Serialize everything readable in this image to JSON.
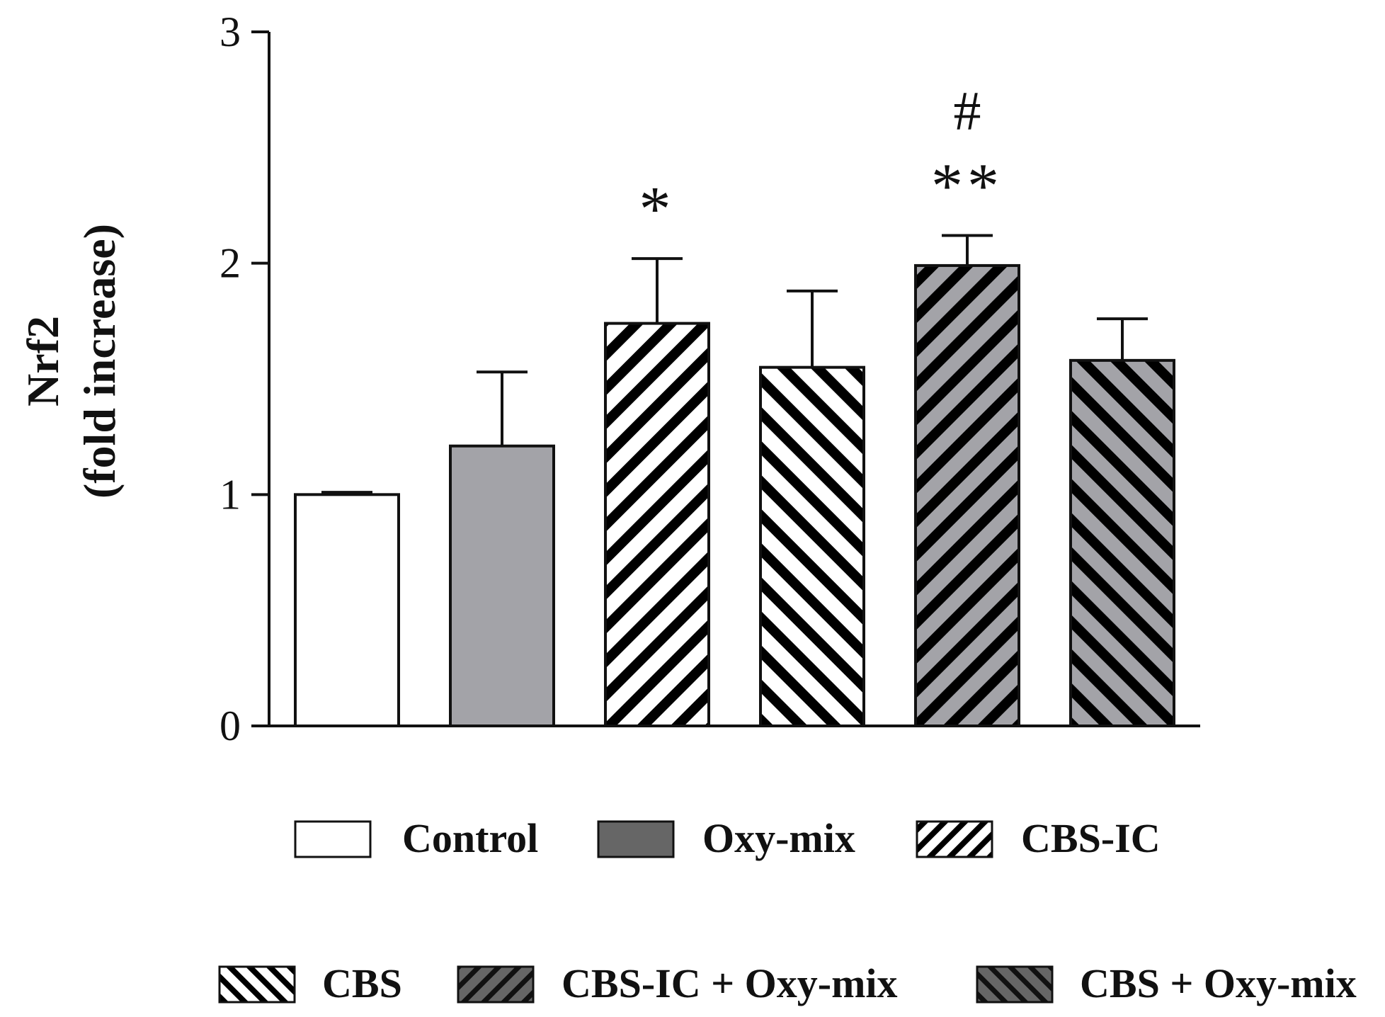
{
  "chart_data": {
    "type": "bar",
    "title": "",
    "xlabel": "",
    "ylabel": [
      "Nrf2",
      "(fold increase)"
    ],
    "ylim": [
      0,
      3
    ],
    "yticks": [
      0,
      1,
      2,
      3
    ],
    "grid": false,
    "categories": [
      "Control",
      "Oxy-mix",
      "CBS-IC",
      "CBS",
      "CBS-IC + Oxy-mix",
      "CBS + Oxy-mix"
    ],
    "values": [
      1.0,
      1.21,
      1.74,
      1.55,
      1.99,
      1.58
    ],
    "errors": [
      0.01,
      0.32,
      0.28,
      0.33,
      0.13,
      0.18
    ],
    "annotations": [
      {
        "category": "CBS-IC",
        "lines": [
          "*"
        ]
      },
      {
        "category": "CBS-IC + Oxy-mix",
        "lines": [
          "#",
          "**"
        ]
      }
    ],
    "legend": {
      "placement": "bottom",
      "entries": [
        "Control",
        "Oxy-mix",
        "CBS-IC",
        "CBS",
        "CBS-IC + Oxy-mix",
        "CBS + Oxy-mix"
      ]
    },
    "series_styles": [
      {
        "fill": "#ffffff",
        "hatch": "none"
      },
      {
        "fill": "#a3a3a8",
        "hatch": "none"
      },
      {
        "fill": "#ffffff",
        "hatch": "forward"
      },
      {
        "fill": "#ffffff",
        "hatch": "backward"
      },
      {
        "fill": "#a3a3a8",
        "hatch": "forward"
      },
      {
        "fill": "#a3a3a8",
        "hatch": "backward"
      }
    ],
    "legend_styles": [
      {
        "fill": "#ffffff",
        "hatch": "none"
      },
      {
        "fill": "#666666",
        "hatch": "none"
      },
      {
        "fill": "#ffffff",
        "hatch": "forward"
      },
      {
        "fill": "#ffffff",
        "hatch": "backward"
      },
      {
        "fill": "#666666",
        "hatch": "forward"
      },
      {
        "fill": "#666666",
        "hatch": "backward"
      }
    ]
  }
}
